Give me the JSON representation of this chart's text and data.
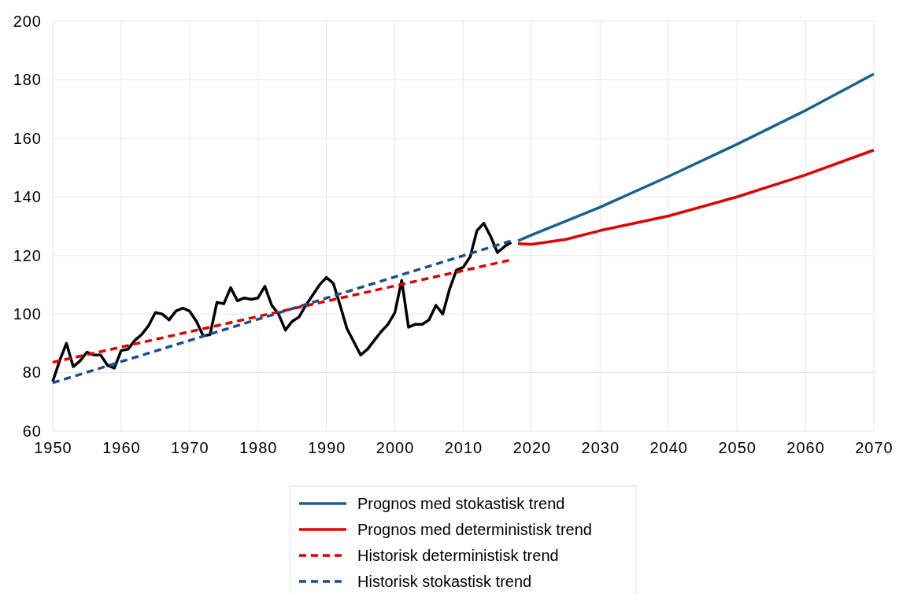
{
  "chart_data": {
    "type": "line",
    "xlim": [
      1950,
      2070
    ],
    "xticks": [
      1950,
      1960,
      1970,
      1980,
      1990,
      2000,
      2010,
      2020,
      2030,
      2040,
      2050,
      2060,
      2070
    ],
    "ylim": [
      60,
      200
    ],
    "yticks": [
      60,
      80,
      100,
      120,
      140,
      160,
      180,
      200
    ],
    "grid": true,
    "legend": "bottom",
    "series": [
      {
        "color": "#000000",
        "line_style": "solid",
        "x": [
          1950,
          1951,
          1952,
          1953,
          1954,
          1955,
          1956,
          1957,
          1958,
          1959,
          1960,
          1961,
          1962,
          1963,
          1964,
          1965,
          1966,
          1967,
          1968,
          1969,
          1970,
          1971,
          1972,
          1973,
          1974,
          1975,
          1976,
          1977,
          1978,
          1979,
          1980,
          1981,
          1982,
          1983,
          1984,
          1985,
          1986,
          1987,
          1988,
          1989,
          1990,
          1991,
          1992,
          1993,
          1994,
          1995,
          1996,
          1997,
          1998,
          1999,
          2000,
          2001,
          2002,
          2003,
          2004,
          2005,
          2006,
          2007,
          2008,
          2009,
          2010,
          2011,
          2012,
          2013,
          2014,
          2015,
          2016,
          2017
        ],
        "values": [
          77,
          84,
          90,
          82,
          84,
          87,
          86,
          86,
          82.5,
          81.5,
          87.5,
          88,
          91,
          93,
          96,
          100.5,
          100,
          98,
          101,
          102,
          101,
          97.5,
          92.5,
          93,
          104,
          103.5,
          109,
          104.5,
          105.5,
          105,
          105.5,
          109.5,
          103,
          100,
          94.5,
          97.5,
          99,
          103,
          106.5,
          110,
          112.5,
          110.5,
          103,
          95,
          90.5,
          86,
          88,
          91,
          94,
          96.5,
          100.5,
          111.5,
          95.5,
          96.5,
          96.5,
          98,
          103,
          100,
          108.5,
          115,
          116,
          119.5,
          128.5,
          131,
          126.5,
          121,
          123,
          124.5
        ]
      },
      {
        "name": "Prognos med stokastisk trend",
        "color": "#17628f",
        "line_style": "solid",
        "x": [
          2018,
          2020,
          2030,
          2040,
          2050,
          2060,
          2070
        ],
        "values": [
          125,
          127,
          136.5,
          147,
          158,
          169.5,
          182
        ]
      },
      {
        "name": "Prognos med deterministisk trend",
        "color": "#e00000",
        "line_style": "solid",
        "x": [
          2018,
          2020,
          2025,
          2030,
          2040,
          2050,
          2060,
          2070
        ],
        "values": [
          124,
          123.8,
          125.5,
          128.5,
          133.5,
          140,
          147.5,
          156
        ]
      },
      {
        "name": "Historisk deterministisk trend",
        "color": "#e00000",
        "line_style": "dashed",
        "x": [
          1950,
          2017
        ],
        "values": [
          83.5,
          118.5
        ]
      },
      {
        "name": "Historisk stokastisk trend",
        "color": "#1a4f8f",
        "line_style": "dashed",
        "x": [
          1950,
          2017
        ],
        "values": [
          76.5,
          125
        ]
      }
    ]
  }
}
